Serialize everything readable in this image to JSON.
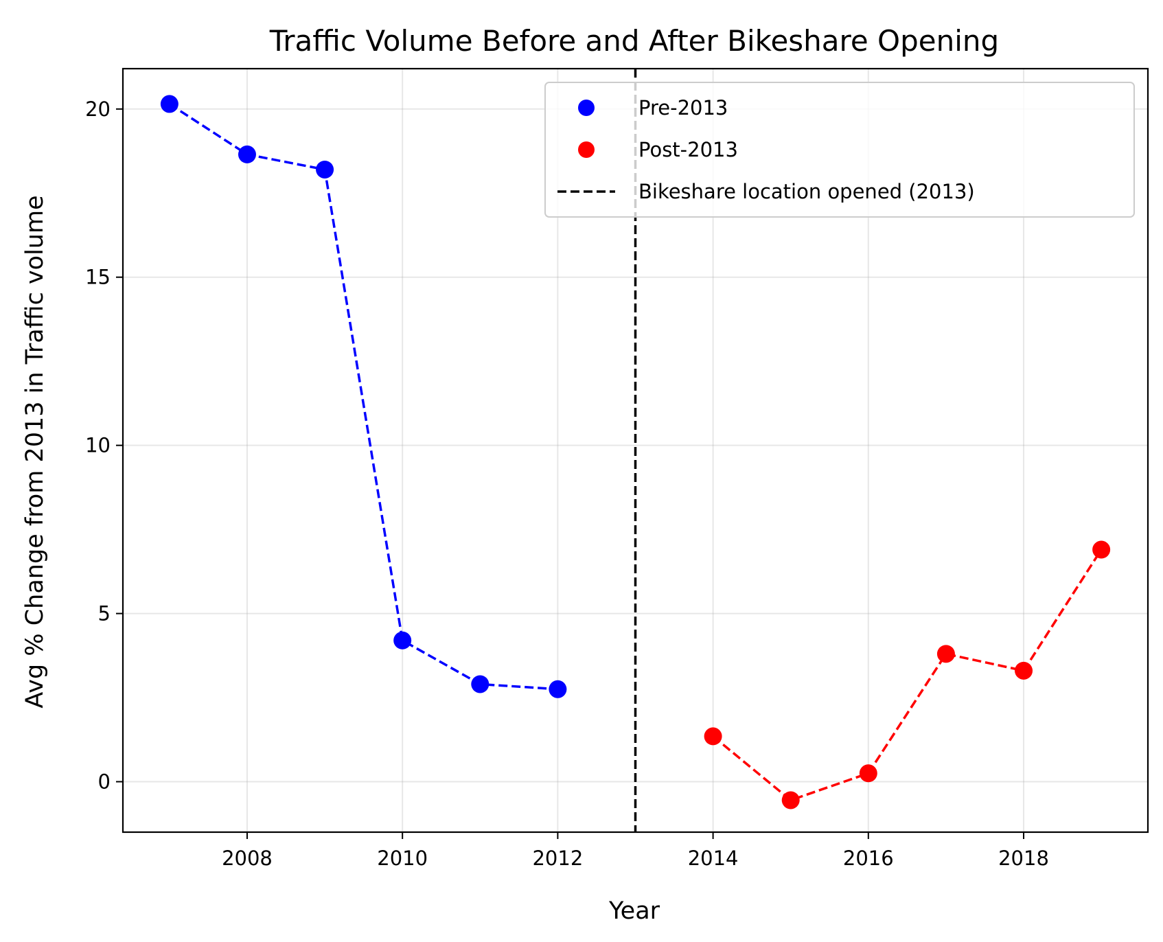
{
  "chart_data": {
    "type": "scatter",
    "title": "Traffic Volume Before and After Bikeshare Opening",
    "xlabel": "Year",
    "ylabel": "Avg % Change from 2013 in Traffic volume",
    "xlim": [
      2006.4,
      2019.6
    ],
    "ylim": [
      -1.5,
      21.2
    ],
    "xticks": [
      2008,
      2010,
      2012,
      2014,
      2016,
      2018
    ],
    "yticks": [
      0,
      5,
      10,
      15,
      20
    ],
    "grid": true,
    "legend_position": "top-right",
    "series": [
      {
        "name": "Pre-2013",
        "color": "#0000ff",
        "line_style": "dashed",
        "points": [
          {
            "x": 2007,
            "y": 20.15
          },
          {
            "x": 2008,
            "y": 18.65
          },
          {
            "x": 2009,
            "y": 18.2
          },
          {
            "x": 2010,
            "y": 4.2
          },
          {
            "x": 2011,
            "y": 2.9
          },
          {
            "x": 2012,
            "y": 2.75
          }
        ]
      },
      {
        "name": "Post-2013",
        "color": "#ff0000",
        "line_style": "dashed",
        "points": [
          {
            "x": 2014,
            "y": 1.35
          },
          {
            "x": 2015,
            "y": -0.55
          },
          {
            "x": 2016,
            "y": 0.25
          },
          {
            "x": 2017,
            "y": 3.8
          },
          {
            "x": 2018,
            "y": 3.3
          },
          {
            "x": 2019,
            "y": 6.9
          }
        ]
      }
    ],
    "vertical_line": {
      "x": 2013,
      "label": "Bikeshare location opened (2013)",
      "color": "#000000",
      "line_style": "dashed"
    }
  }
}
